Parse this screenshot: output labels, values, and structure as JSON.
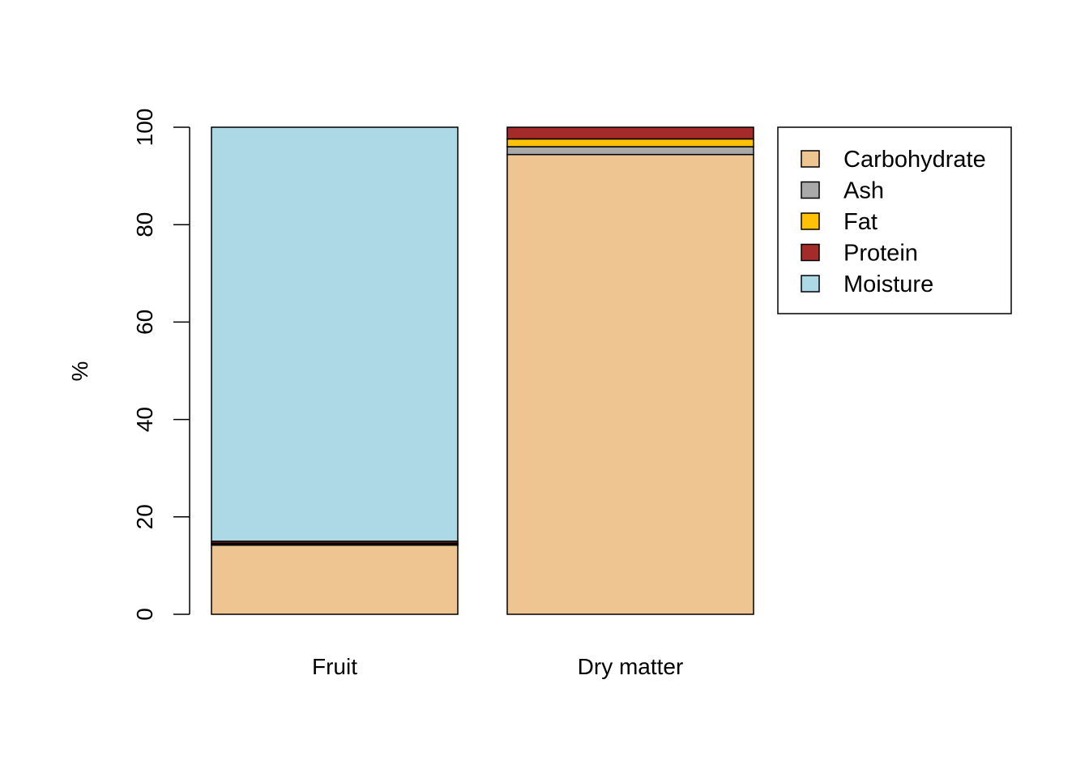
{
  "chart_data": {
    "type": "bar",
    "stacked": true,
    "categories": [
      "Fruit",
      "Dry matter"
    ],
    "series": [
      {
        "name": "Carbohydrate",
        "color": "#EEC591",
        "values": [
          14.2,
          94.4
        ]
      },
      {
        "name": "Ash",
        "color": "#A9A9A9",
        "values": [
          0.2,
          1.6
        ]
      },
      {
        "name": "Fat",
        "color": "#FFC107",
        "values": [
          0.2,
          1.6
        ]
      },
      {
        "name": "Protein",
        "color": "#A52A2A",
        "values": [
          0.4,
          2.4
        ]
      },
      {
        "name": "Moisture",
        "color": "#ADD8E6",
        "values": [
          85.0,
          0.0
        ]
      }
    ],
    "title": "",
    "xlabel": "",
    "ylabel": "%",
    "ylim": [
      0,
      100
    ],
    "yticks": [
      "0",
      "20",
      "40",
      "60",
      "80",
      "100"
    ],
    "grid": false,
    "legend_position": "top-right"
  }
}
